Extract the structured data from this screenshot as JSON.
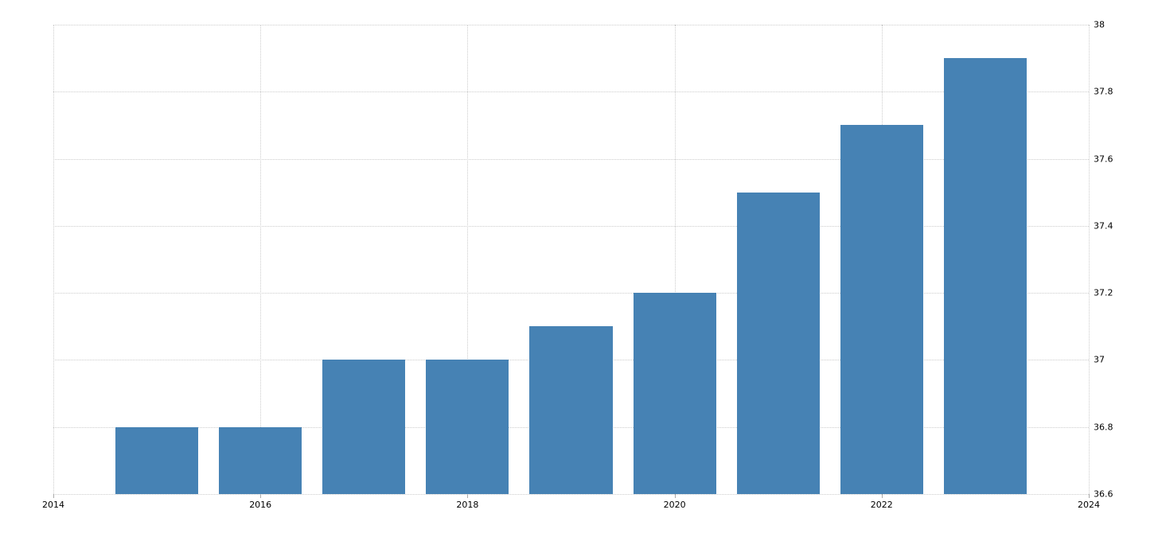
{
  "chart_data": {
    "type": "bar",
    "title": "",
    "xlabel": "",
    "ylabel": "",
    "x": [
      2015,
      2016,
      2017,
      2018,
      2019,
      2020,
      2021,
      2022,
      2023
    ],
    "values": [
      36.8,
      36.8,
      37.0,
      37.0,
      37.1,
      37.2,
      37.5,
      37.7,
      37.9
    ],
    "xlim": [
      2014,
      2024
    ],
    "ylim": [
      36.6,
      38.0
    ],
    "yticks": [
      36.6,
      36.8,
      37.0,
      37.2,
      37.4,
      37.6,
      37.8,
      38.0
    ],
    "ytick_labels": [
      "36.6",
      "36.8",
      "37",
      "37.2",
      "37.4",
      "37.6",
      "37.8",
      "38"
    ],
    "xticks": [
      2014,
      2016,
      2018,
      2020,
      2022,
      2024
    ],
    "xtick_labels": [
      "2014",
      "2016",
      "2018",
      "2020",
      "2022",
      "2024"
    ],
    "y_axis_side": "right",
    "grid": "dotted",
    "legend_position": "none",
    "bar_width_fraction": 0.8,
    "colors": {
      "bar": "#4682B4",
      "grid": "#cccccc",
      "tick": "#aaaaaa",
      "label": "#000000",
      "background": "#ffffff"
    }
  }
}
